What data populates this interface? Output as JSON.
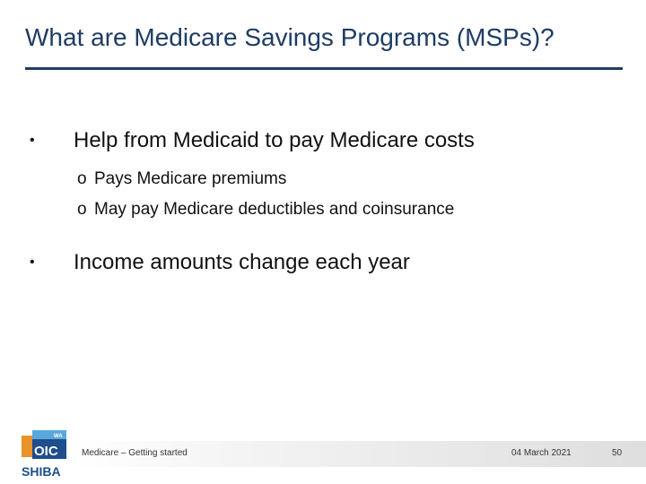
{
  "slide": {
    "title": "What are Medicare Savings Programs (MSPs)?",
    "bullets": [
      {
        "marker": "•",
        "text": "Help from Medicaid to pay Medicare costs",
        "subitems": [
          {
            "marker": "o",
            "text": "Pays Medicare premiums"
          },
          {
            "marker": "o",
            "text": "May pay Medicare deductibles and coinsurance"
          }
        ]
      },
      {
        "marker": "•",
        "text": "Income amounts change each year"
      }
    ]
  },
  "logo": {
    "small": "WA",
    "top": "OIC",
    "bottom": "SHIBA"
  },
  "footer": {
    "left": "Medicare – Getting started",
    "date": "04 March 2021",
    "page": "50"
  },
  "colors": {
    "title": "#1f3c64",
    "logo_blue": "#1e4e8c",
    "logo_light_blue": "#5aa7dc",
    "logo_orange": "#e8932c"
  }
}
